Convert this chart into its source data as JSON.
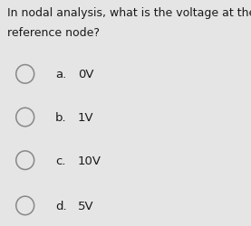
{
  "question_line1": "In nodal analysis, what is the voltage at the",
  "question_line2": "reference node?",
  "options": [
    {
      "label": "a.",
      "text": "0V"
    },
    {
      "label": "b.",
      "text": "1V"
    },
    {
      "label": "c.",
      "text": "10V"
    },
    {
      "label": "d.",
      "text": "5V"
    }
  ],
  "background_color": "#e5e5e5",
  "text_color": "#1a1a1a",
  "circle_edge_color": "#888888",
  "circle_face_color": "#e5e5e5",
  "question_fontsize": 9.0,
  "option_label_fontsize": 9.5,
  "option_text_fontsize": 9.5
}
